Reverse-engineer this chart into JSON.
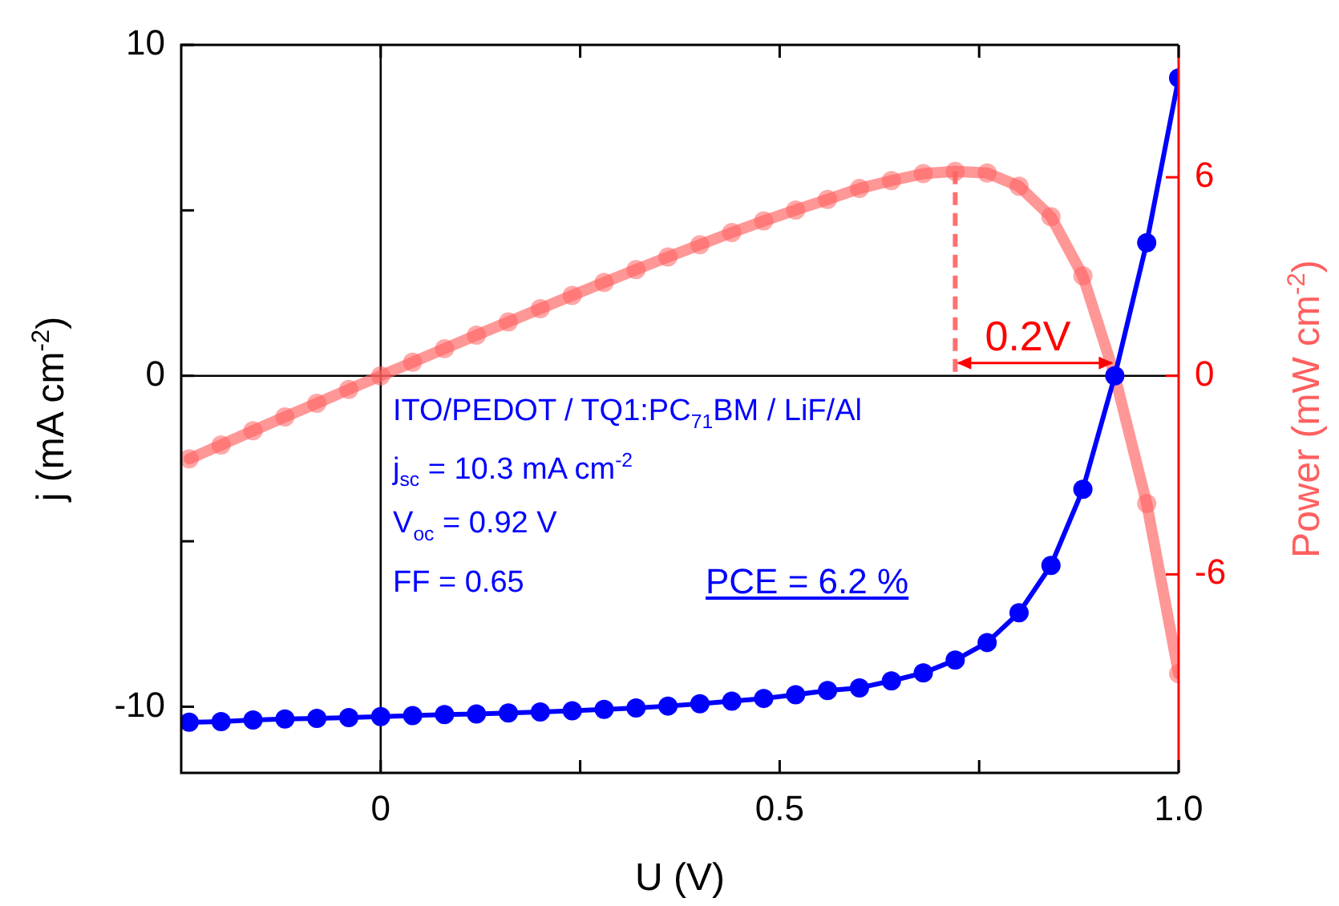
{
  "chart_data": {
    "type": "line",
    "xlabel": "U (V)",
    "ylabel": "j (mA cm$^{-2}$)",
    "y2label": "Power (mW cm$^{-2}$)",
    "x": [
      -0.24,
      -0.2,
      -0.16,
      -0.12,
      -0.08,
      -0.04,
      0,
      0.04,
      0.08,
      0.12,
      0.16,
      0.2,
      0.24,
      0.28,
      0.32,
      0.36,
      0.4,
      0.44,
      0.48,
      0.52,
      0.56,
      0.6,
      0.64,
      0.68,
      0.72,
      0.76,
      0.8,
      0.84,
      0.88,
      0.92,
      0.96,
      1.0
    ],
    "series": [
      {
        "color": "#0000ff",
        "values": [
          -10.47,
          -10.45,
          -10.4,
          -10.37,
          -10.35,
          -10.33,
          -10.3,
          -10.27,
          -10.24,
          -10.22,
          -10.19,
          -10.16,
          -10.12,
          -10.08,
          -10.04,
          -9.98,
          -9.91,
          -9.83,
          -9.75,
          -9.64,
          -9.51,
          -9.43,
          -9.22,
          -8.98,
          -8.59,
          -8.06,
          -7.16,
          -5.73,
          -3.43,
          0,
          4.02,
          9.0
        ]
      },
      {
        "color": "#ff6060",
        "axis": "y2",
        "values": [
          -2.51,
          -2.09,
          -1.66,
          -1.24,
          -0.83,
          -0.41,
          0,
          0.41,
          0.82,
          1.23,
          1.63,
          2.03,
          2.43,
          2.82,
          3.21,
          3.59,
          3.96,
          4.33,
          4.68,
          5.01,
          5.33,
          5.66,
          5.9,
          6.11,
          6.18,
          6.13,
          5.73,
          4.81,
          3.02,
          0,
          -3.86,
          -9.0
        ]
      }
    ],
    "xlim": [
      -0.25,
      1.0
    ],
    "xticks": [
      0,
      {
        "value": 0.25,
        "label": null
      },
      0.5,
      {
        "value": 0.75,
        "label": null
      },
      {
        "value": 1.0,
        "label": "1.0"
      }
    ],
    "ylim": [
      -12,
      10
    ],
    "yticks": [
      -10,
      {
        "value": -5,
        "label": null
      },
      0,
      {
        "value": 5,
        "label": null
      },
      10
    ],
    "y2lim": [
      -12,
      10
    ],
    "y2ticks": [
      -6,
      0,
      6
    ],
    "ref_lines": [
      {
        "axis": "x",
        "value": 0,
        "color": "#000000"
      },
      {
        "axis": "y",
        "value": 0,
        "color": "#000000"
      },
      {
        "axis": "x",
        "value": 0.72,
        "color": "#ff7070",
        "line_style": "dashed"
      }
    ],
    "annotations": [
      "ITO/PEDOT / TQ1:PC$_{71}$BM / LiF/Al",
      "j$_{sc}$ = 10.3 mA cm$^{-2}$",
      "V$_{oc}$ = 0.92 V",
      "FF = 0.65",
      "PCE = 6.2 %",
      "0.2V"
    ],
    "grid": false,
    "legend": false,
    "marker": "circle",
    "line_style": "solid"
  }
}
